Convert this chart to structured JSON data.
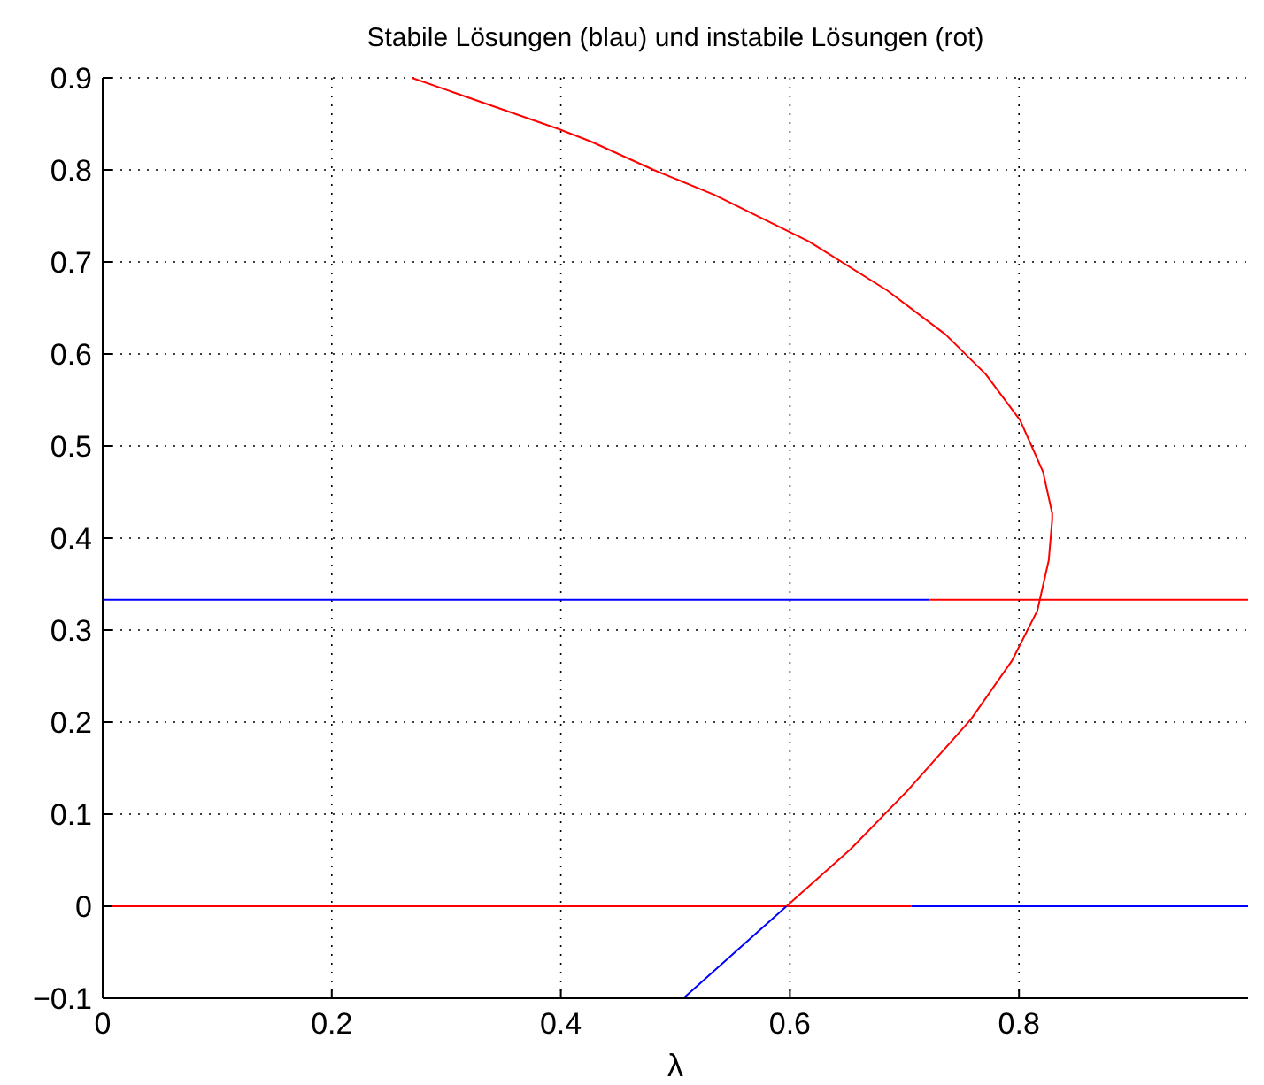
{
  "chart_data": {
    "type": "line",
    "title": "Stabile Lösungen (blau) und instabile Lösungen (rot)",
    "xlabel": "λ",
    "xlim": [
      0,
      1
    ],
    "ylim": [
      -0.1,
      0.9
    ],
    "xticks": [
      0,
      0.2,
      0.4,
      0.6,
      0.8
    ],
    "yticks": [
      -0.1,
      0,
      0.1,
      0.2,
      0.3,
      0.4,
      0.5,
      0.6,
      0.7,
      0.8,
      0.9
    ],
    "grid": true,
    "marker": "none",
    "line_style": "solid",
    "series": [
      {
        "color": "#0000ff",
        "x": [
          0,
          0.722
        ],
        "values": [
          0.333,
          0.333
        ]
      },
      {
        "color": "#ff0000",
        "x": [
          0.722,
          1
        ],
        "values": [
          0.333,
          0.333
        ]
      },
      {
        "color": "#ff0000",
        "x": [
          0,
          0.706
        ],
        "values": [
          0,
          0
        ]
      },
      {
        "color": "#0000ff",
        "x": [
          0.706,
          1
        ],
        "values": [
          0,
          0
        ]
      },
      {
        "color": "#0000ff",
        "x": [
          0.507,
          0.597
        ],
        "values": [
          -0.1,
          0
        ]
      },
      {
        "color": "#ff0000",
        "x": [
          0.597,
          0.653,
          0.703,
          0.758,
          0.794,
          0.816,
          0.826,
          0.829,
          0.829,
          0.821,
          0.801,
          0.771,
          0.736,
          0.685,
          0.617,
          0.534,
          0.481,
          0.426,
          0.397,
          0.27
        ],
        "values": [
          0,
          0.062,
          0.126,
          0.203,
          0.267,
          0.321,
          0.376,
          0.42,
          0.427,
          0.472,
          0.528,
          0.578,
          0.621,
          0.669,
          0.722,
          0.773,
          0.8,
          0.831,
          0.845,
          0.9
        ]
      }
    ]
  }
}
